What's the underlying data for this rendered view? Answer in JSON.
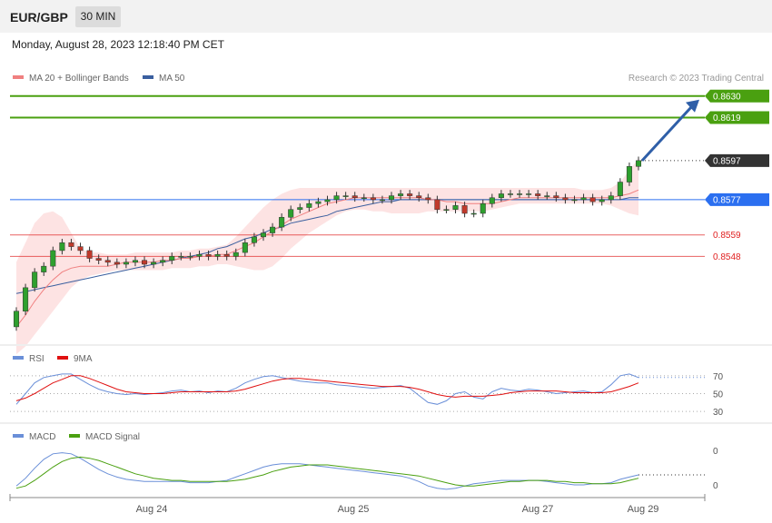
{
  "header": {
    "symbol": "EUR/GBP",
    "timeframe": "30 MIN",
    "datetime": "Monday, August 28, 2023 12:18:40 PM CET"
  },
  "legend": {
    "main": [
      {
        "label": "MA 20 + Bollinger Bands",
        "color": "#f08080"
      },
      {
        "label": "MA 50",
        "color": "#3a5f9f"
      }
    ],
    "rsi": [
      {
        "label": "RSI",
        "color": "#6a8fd8"
      },
      {
        "label": "9MA",
        "color": "#e01010"
      }
    ],
    "macd": [
      {
        "label": "MACD",
        "color": "#6a8fd8"
      },
      {
        "label": "MACD Signal",
        "color": "#4aa010"
      }
    ]
  },
  "credit": "Research © 2023 Trading Central",
  "price_levels": [
    {
      "value": "0.8630",
      "kind": "target",
      "color": "#4aa010"
    },
    {
      "value": "0.8619",
      "kind": "target",
      "color": "#4aa010"
    },
    {
      "value": "0.8597",
      "kind": "last",
      "color": "#333333"
    },
    {
      "value": "0.8577",
      "kind": "pivot",
      "color": "#2b6ff0"
    },
    {
      "value": "0.8559",
      "kind": "support",
      "color": "#e02020"
    },
    {
      "value": "0.8548",
      "kind": "support",
      "color": "#e02020"
    }
  ],
  "rsi_levels": [
    "70",
    "50",
    "30"
  ],
  "macd_levels": [
    "0",
    "0"
  ],
  "chart_data": {
    "type": "line",
    "x_labels": [
      "Aug 24",
      "Aug 25",
      "Aug 27",
      "Aug 29"
    ],
    "price_close": [
      0.852,
      0.8532,
      0.854,
      0.8543,
      0.8551,
      0.8555,
      0.8553,
      0.8551,
      0.8547,
      0.8546,
      0.8545,
      0.8544,
      0.8545,
      0.8546,
      0.8544,
      0.8545,
      0.8546,
      0.8548,
      0.8548,
      0.8548,
      0.8549,
      0.8548,
      0.8549,
      0.8548,
      0.855,
      0.8555,
      0.8558,
      0.856,
      0.8563,
      0.8568,
      0.8572,
      0.8573,
      0.8575,
      0.8576,
      0.8577,
      0.8579,
      0.8579,
      0.8578,
      0.8578,
      0.8577,
      0.8577,
      0.8579,
      0.858,
      0.8579,
      0.8578,
      0.8577,
      0.8572,
      0.8572,
      0.8574,
      0.857,
      0.857,
      0.8575,
      0.8578,
      0.858,
      0.858,
      0.858,
      0.858,
      0.8579,
      0.8579,
      0.8578,
      0.8577,
      0.8577,
      0.8578,
      0.8576,
      0.8577,
      0.8579,
      0.8586,
      0.8594,
      0.8597
    ],
    "ma20": [
      0.8512,
      0.8518,
      0.8525,
      0.8531,
      0.8536,
      0.854,
      0.8542,
      0.8543,
      0.8543,
      0.8543,
      0.8543,
      0.8544,
      0.8545,
      0.8545,
      0.8545,
      0.8545,
      0.8546,
      0.8546,
      0.8547,
      0.8547,
      0.8548,
      0.8548,
      0.8549,
      0.8549,
      0.8551,
      0.8553,
      0.8555,
      0.8558,
      0.8561,
      0.8564,
      0.8567,
      0.8569,
      0.8571,
      0.8573,
      0.8575,
      0.8576,
      0.8577,
      0.8578,
      0.8578,
      0.8578,
      0.8578,
      0.8578,
      0.8578,
      0.8578,
      0.8578,
      0.8577,
      0.8577,
      0.8576,
      0.8576,
      0.8575,
      0.8575,
      0.8575,
      0.8575,
      0.8576,
      0.8577,
      0.8578,
      0.8578,
      0.8578,
      0.8578,
      0.8578,
      0.8578,
      0.8578,
      0.8578,
      0.8578,
      0.8578,
      0.8578,
      0.8579,
      0.858,
      0.8582
    ],
    "ma50": [
      0.8529,
      0.853,
      0.8531,
      0.8532,
      0.8533,
      0.8534,
      0.8535,
      0.8536,
      0.8537,
      0.8538,
      0.8539,
      0.854,
      0.8541,
      0.8542,
      0.8543,
      0.8544,
      0.8545,
      0.8546,
      0.8547,
      0.8548,
      0.8549,
      0.855,
      0.8552,
      0.8553,
      0.8555,
      0.8557,
      0.8558,
      0.856,
      0.8562,
      0.8563,
      0.8565,
      0.8566,
      0.8567,
      0.8568,
      0.8569,
      0.8571,
      0.8572,
      0.8573,
      0.8574,
      0.8575,
      0.8576,
      0.8576,
      0.8577,
      0.8577,
      0.8577,
      0.8577,
      0.8577,
      0.8577,
      0.8577,
      0.8577,
      0.8577,
      0.8577,
      0.8577,
      0.8577,
      0.8577,
      0.8577,
      0.8577,
      0.8577,
      0.8577,
      0.8577,
      0.8577,
      0.8577,
      0.8577,
      0.8577,
      0.8577,
      0.8577,
      0.8577,
      0.8578,
      0.8578
    ],
    "bb_upper": [
      0.8545,
      0.8555,
      0.8565,
      0.857,
      0.8571,
      0.8568,
      0.856,
      0.8552,
      0.855,
      0.855,
      0.8549,
      0.8549,
      0.8549,
      0.855,
      0.855,
      0.855,
      0.855,
      0.855,
      0.8551,
      0.8551,
      0.8552,
      0.8552,
      0.8553,
      0.8554,
      0.8558,
      0.8563,
      0.8568,
      0.8573,
      0.8577,
      0.858,
      0.8582,
      0.8583,
      0.8583,
      0.8583,
      0.8583,
      0.8583,
      0.8583,
      0.8583,
      0.8583,
      0.8583,
      0.8583,
      0.8583,
      0.8583,
      0.8583,
      0.8583,
      0.8583,
      0.8583,
      0.8583,
      0.8583,
      0.8583,
      0.8583,
      0.8583,
      0.8583,
      0.8583,
      0.8583,
      0.8583,
      0.8583,
      0.8583,
      0.8583,
      0.8583,
      0.8583,
      0.8583,
      0.8582,
      0.8582,
      0.8582,
      0.8583,
      0.8586,
      0.8592,
      0.8598
    ],
    "bb_lower": [
      0.8498,
      0.8502,
      0.8508,
      0.8514,
      0.852,
      0.8526,
      0.8532,
      0.8536,
      0.8538,
      0.8539,
      0.854,
      0.8541,
      0.8541,
      0.8541,
      0.8541,
      0.8541,
      0.8541,
      0.8542,
      0.8542,
      0.8542,
      0.8543,
      0.8543,
      0.8544,
      0.8544,
      0.8543,
      0.8542,
      0.8541,
      0.8541,
      0.8543,
      0.8547,
      0.8552,
      0.8556,
      0.856,
      0.8563,
      0.8566,
      0.8569,
      0.8571,
      0.8572,
      0.8572,
      0.8571,
      0.8571,
      0.857,
      0.857,
      0.857,
      0.857,
      0.8571,
      0.8571,
      0.8571,
      0.8571,
      0.8571,
      0.8571,
      0.8571,
      0.8572,
      0.8573,
      0.8574,
      0.8575,
      0.8575,
      0.8575,
      0.8575,
      0.8575,
      0.8575,
      0.8575,
      0.8575,
      0.8575,
      0.8575,
      0.8574,
      0.8572,
      0.857,
      0.8569
    ],
    "price_ylim": [
      0.8505,
      0.8635
    ],
    "rsi": [
      38,
      50,
      62,
      68,
      70,
      72,
      72,
      66,
      60,
      55,
      52,
      50,
      49,
      50,
      49,
      50,
      51,
      53,
      54,
      52,
      53,
      51,
      53,
      52,
      56,
      62,
      66,
      69,
      70,
      68,
      66,
      64,
      63,
      62,
      62,
      60,
      59,
      58,
      57,
      56,
      57,
      58,
      59,
      56,
      48,
      40,
      38,
      42,
      50,
      52,
      46,
      44,
      52,
      56,
      54,
      53,
      55,
      54,
      52,
      50,
      51,
      52,
      53,
      51,
      52,
      60,
      70,
      72,
      68
    ],
    "rsi_ma": [
      42,
      45,
      50,
      56,
      62,
      66,
      70,
      70,
      67,
      63,
      59,
      55,
      52,
      51,
      50,
      50,
      50,
      51,
      52,
      52,
      52,
      52,
      52,
      52,
      53,
      55,
      58,
      61,
      64,
      66,
      67,
      67,
      66,
      65,
      64,
      63,
      62,
      61,
      60,
      59,
      58,
      58,
      58,
      57,
      55,
      52,
      49,
      47,
      46,
      47,
      47,
      47,
      48,
      49,
      51,
      52,
      53,
      53,
      53,
      53,
      52,
      51,
      51,
      51,
      51,
      52,
      55,
      58,
      62
    ],
    "rsi_ylim": [
      20,
      80
    ],
    "macd": [
      -0.2,
      0.5,
      1.4,
      2.2,
      2.7,
      2.8,
      2.7,
      2.3,
      1.8,
      1.3,
      0.9,
      0.6,
      0.4,
      0.3,
      0.2,
      0.2,
      0.2,
      0.2,
      0.2,
      0.1,
      0.1,
      0.1,
      0.2,
      0.3,
      0.6,
      0.9,
      1.2,
      1.5,
      1.7,
      1.8,
      1.8,
      1.8,
      1.7,
      1.6,
      1.5,
      1.4,
      1.3,
      1.2,
      1.1,
      1.0,
      0.9,
      0.8,
      0.7,
      0.5,
      0.2,
      -0.2,
      -0.4,
      -0.5,
      -0.4,
      -0.2,
      0.0,
      0.1,
      0.2,
      0.3,
      0.3,
      0.3,
      0.3,
      0.3,
      0.2,
      0.1,
      0.0,
      -0.1,
      -0.1,
      0.0,
      0.0,
      0.1,
      0.4,
      0.6,
      0.8
    ],
    "macd_signal": [
      -0.4,
      -0.2,
      0.3,
      0.9,
      1.5,
      2.0,
      2.3,
      2.4,
      2.3,
      2.1,
      1.8,
      1.5,
      1.2,
      0.9,
      0.7,
      0.5,
      0.4,
      0.3,
      0.3,
      0.2,
      0.2,
      0.2,
      0.2,
      0.2,
      0.3,
      0.4,
      0.6,
      0.8,
      1.1,
      1.3,
      1.5,
      1.6,
      1.7,
      1.7,
      1.7,
      1.6,
      1.5,
      1.4,
      1.3,
      1.2,
      1.1,
      1.0,
      0.9,
      0.8,
      0.7,
      0.5,
      0.3,
      0.1,
      -0.1,
      -0.2,
      -0.2,
      -0.1,
      0.0,
      0.1,
      0.2,
      0.2,
      0.3,
      0.3,
      0.3,
      0.2,
      0.2,
      0.1,
      0.1,
      0.0,
      0.0,
      0.0,
      0.1,
      0.3,
      0.5
    ],
    "macd_ylim": [
      -1.0,
      3.5
    ],
    "forecast_target": 0.863
  }
}
